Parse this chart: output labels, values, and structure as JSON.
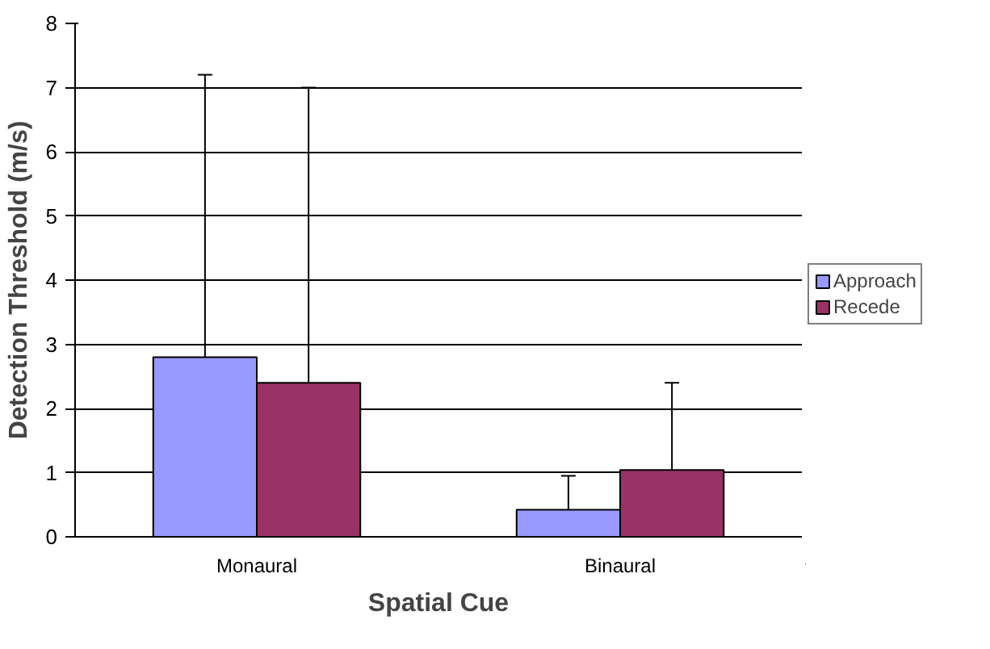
{
  "chart_data": {
    "type": "bar",
    "xlabel": "Spatial Cue",
    "ylabel": "Detection Threshold (m/s)",
    "categories": [
      "Monaural",
      "Binaural"
    ],
    "series": [
      {
        "name": "Approach",
        "color": "#9999ff",
        "values": [
          2.8,
          0.42
        ],
        "errors": [
          [
            2.8,
            7.2
          ],
          [
            0.42,
            0.95
          ]
        ]
      },
      {
        "name": "Recede",
        "color": "#993366",
        "values": [
          2.4,
          1.04
        ],
        "errors": [
          [
            2.4,
            7.0
          ],
          [
            1.04,
            2.4
          ]
        ]
      }
    ],
    "ylim": [
      0,
      8
    ],
    "yticks": [
      0,
      1,
      2,
      3,
      4,
      5,
      6,
      7,
      8
    ],
    "grid": "y",
    "legend": "right"
  }
}
